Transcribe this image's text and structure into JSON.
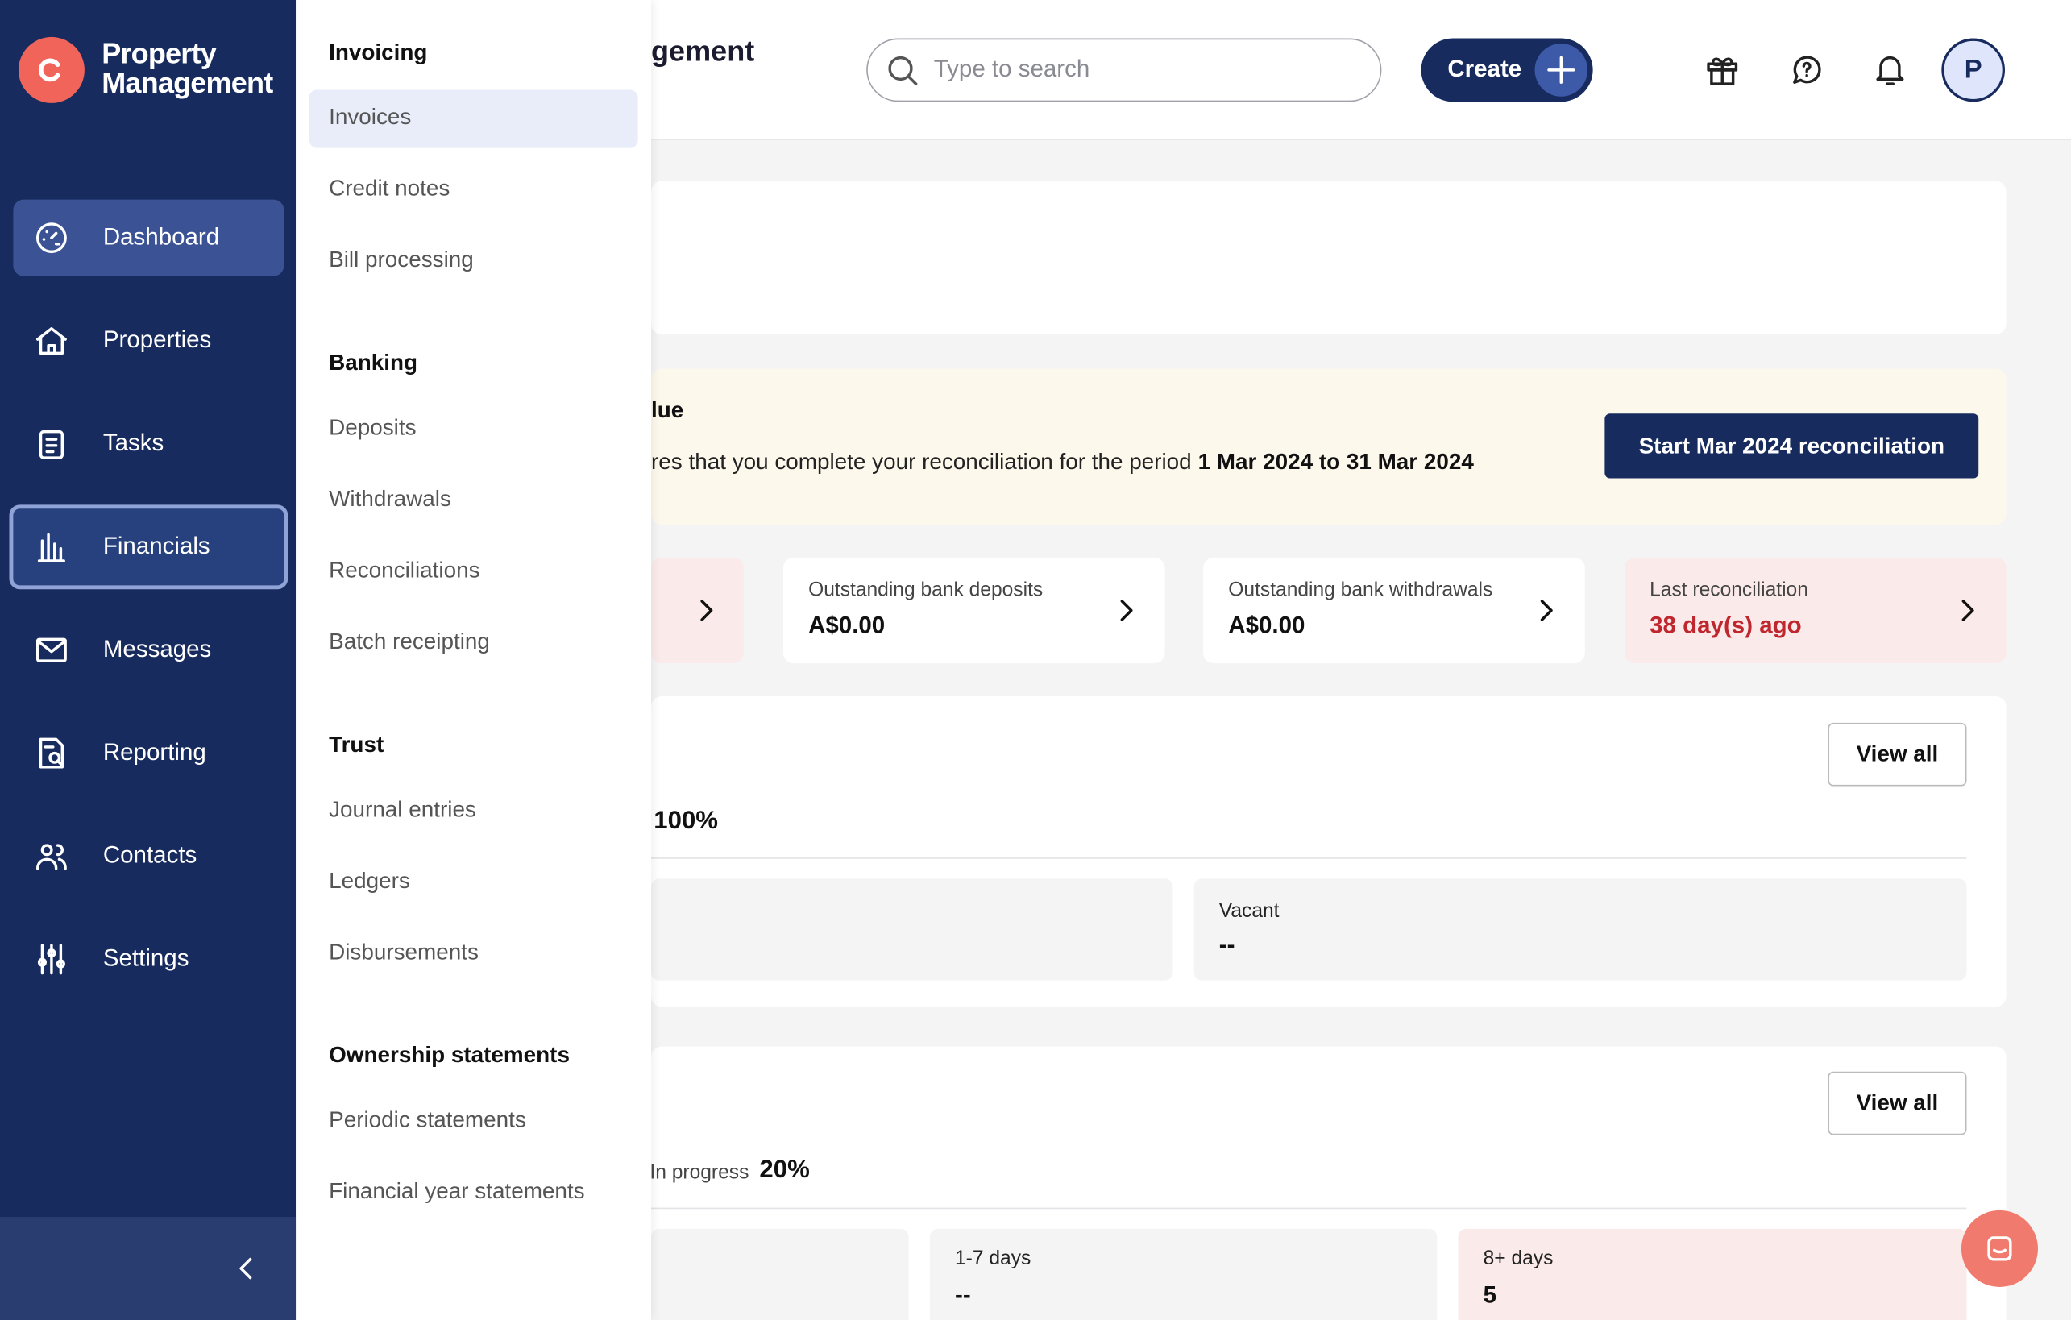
{
  "sidebar": {
    "brand": [
      "Property",
      "Management"
    ],
    "nav": [
      "Dashboard",
      "Properties",
      "Tasks",
      "Financials",
      "Messages",
      "Reporting",
      "Contacts",
      "Settings"
    ]
  },
  "submenu": {
    "sections": [
      {
        "heading": "Invoicing",
        "items": [
          "Invoices",
          "Credit notes",
          "Bill processing"
        ]
      },
      {
        "heading": "Banking",
        "items": [
          "Deposits",
          "Withdrawals",
          "Reconciliations",
          "Batch receipting"
        ]
      },
      {
        "heading": "Trust",
        "items": [
          "Journal entries",
          "Ledgers",
          "Disbursements"
        ]
      },
      {
        "heading": "Ownership statements",
        "items": [
          "Periodic statements",
          "Financial year statements"
        ]
      }
    ]
  },
  "header": {
    "title": "gement",
    "search_placeholder": "Type to search",
    "create": "Create",
    "avatar": "P"
  },
  "reconciliation": {
    "title_fragment": "lue",
    "text": "res that you complete your reconciliation for the period",
    "period": "1 Mar 2024 to 31 Mar 2024",
    "button": "Start Mar 2024 reconciliation"
  },
  "stats": [
    {
      "label": "Outstanding bank deposits",
      "value": "A$0.00"
    },
    {
      "label": "Outstanding bank withdrawals",
      "value": "A$0.00"
    },
    {
      "label": "Last reconciliation",
      "value": "38 day(s) ago"
    }
  ],
  "occupancy": {
    "view_all": "View all",
    "percent": "100%",
    "vacant_label": "Vacant",
    "vacant_value": "--"
  },
  "tasks": {
    "view_all": "View all",
    "in_progress_label": "In progress",
    "in_progress_value": "20%",
    "buckets": [
      {
        "label": "1-7 days",
        "value": "--"
      },
      {
        "label": "8+ days",
        "value": "5"
      }
    ]
  }
}
